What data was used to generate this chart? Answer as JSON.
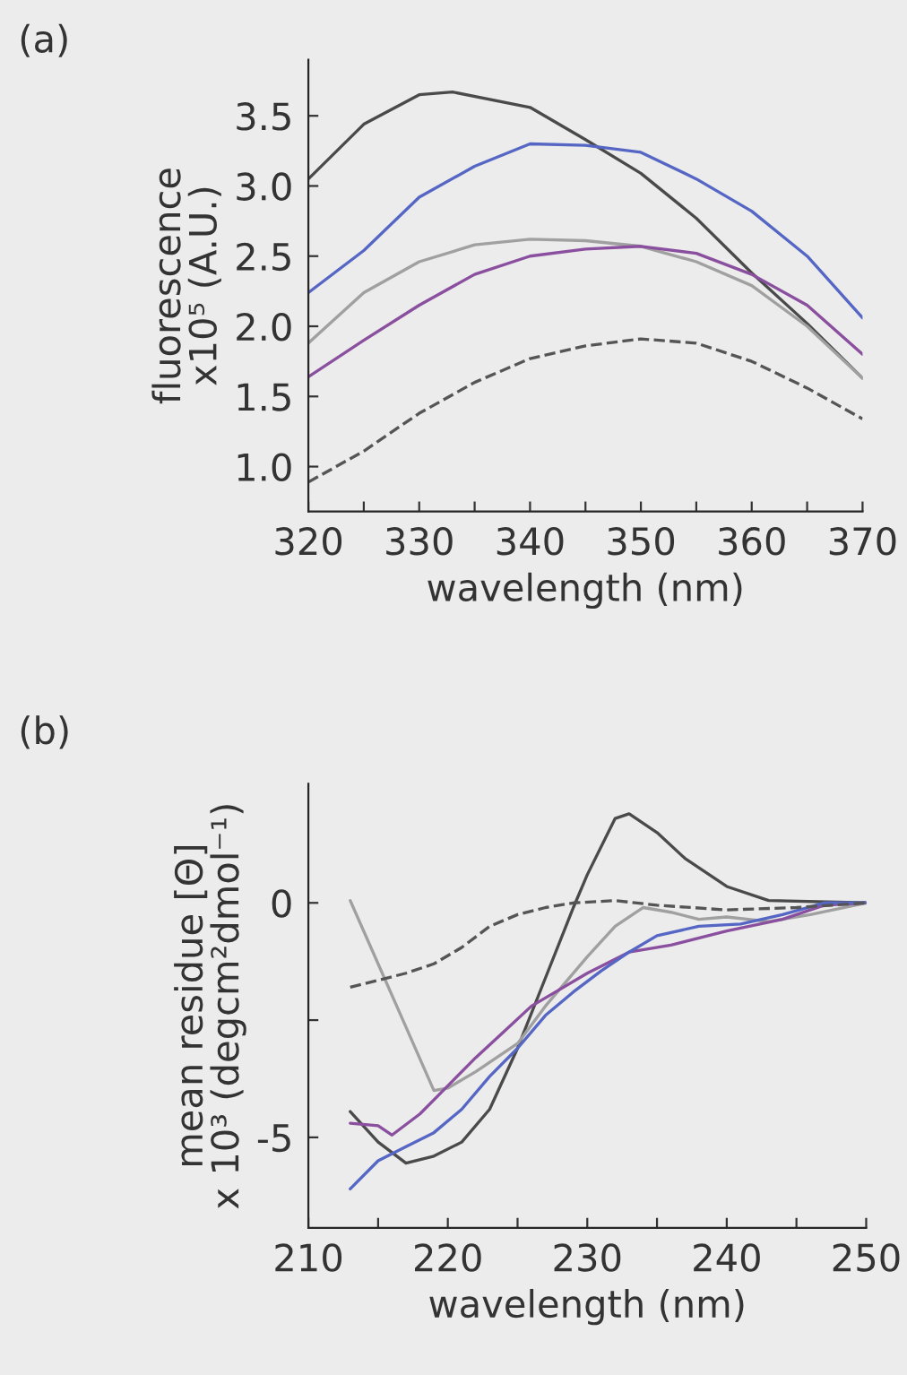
{
  "chart_data": [
    {
      "type": "line",
      "xlabel": "wavelength (nm)",
      "ylabel": "fluorescence\nx10⁵ (A.U.)",
      "annotations": [
        "(a)"
      ],
      "xlim": [
        320,
        370
      ],
      "ylim": [
        0.68,
        3.9
      ],
      "xticks": [
        320,
        {
          "value": 325,
          "label": null
        },
        330,
        {
          "value": 335,
          "label": null
        },
        340,
        {
          "value": 345,
          "label": null
        },
        350,
        {
          "value": 355,
          "label": null
        },
        360,
        {
          "value": 365,
          "label": null
        },
        370
      ],
      "yticks": [
        {
          "value": 1,
          "label": "1.0"
        },
        1.5,
        {
          "value": 2,
          "label": "2.0"
        },
        2.5,
        {
          "value": 3,
          "label": "3.0"
        },
        3.5
      ],
      "series": [
        {
          "color": "#4a4a4a",
          "x": [
            320,
            325,
            330,
            333,
            340,
            345,
            350,
            355,
            360,
            365,
            370
          ],
          "values": [
            3.05,
            3.44,
            3.65,
            3.67,
            3.56,
            3.33,
            3.09,
            2.77,
            2.38,
            2.02,
            1.63
          ]
        },
        {
          "color": "#5566c4",
          "x": [
            320,
            325,
            330,
            335,
            340,
            345,
            350,
            355,
            360,
            365,
            370
          ],
          "values": [
            2.24,
            2.54,
            2.92,
            3.14,
            3.3,
            3.29,
            3.24,
            3.05,
            2.82,
            2.5,
            2.06
          ]
        },
        {
          "color": "#a0a0a0",
          "x": [
            320,
            325,
            330,
            335,
            340,
            345,
            350,
            355,
            360,
            365,
            370
          ],
          "values": [
            1.88,
            2.24,
            2.46,
            2.58,
            2.62,
            2.61,
            2.57,
            2.46,
            2.29,
            2.0,
            1.63
          ]
        },
        {
          "color": "#8a4f9e",
          "x": [
            320,
            325,
            330,
            335,
            340,
            345,
            350,
            355,
            360,
            365,
            370
          ],
          "values": [
            1.64,
            1.9,
            2.15,
            2.37,
            2.5,
            2.55,
            2.57,
            2.52,
            2.37,
            2.15,
            1.8
          ]
        },
        {
          "color": "#555555",
          "line_style": "dashed",
          "x": [
            320,
            325,
            330,
            335,
            340,
            345,
            350,
            355,
            360,
            365,
            370
          ],
          "values": [
            0.89,
            1.11,
            1.38,
            1.6,
            1.77,
            1.86,
            1.91,
            1.88,
            1.75,
            1.56,
            1.34
          ]
        }
      ]
    },
    {
      "type": "line",
      "xlabel": "wavelength (nm)",
      "ylabel": "mean residue [Θ]\nx 10³ (degcm²dmol⁻¹)",
      "annotations": [
        "(b)"
      ],
      "xlim": [
        210,
        250
      ],
      "ylim": [
        -6.93,
        2.54
      ],
      "xticks": [
        210,
        {
          "value": 215,
          "label": null
        },
        220,
        {
          "value": 225,
          "label": null
        },
        230,
        {
          "value": 235,
          "label": null
        },
        240,
        {
          "value": 245,
          "label": null
        },
        250
      ],
      "yticks": [
        -5,
        {
          "value": -2.5,
          "label": null
        },
        0
      ],
      "series": [
        {
          "color": "#4a4a4a",
          "x": [
            213,
            215,
            217,
            219,
            221,
            223,
            225,
            227,
            229,
            230,
            232,
            233,
            235,
            237,
            240,
            243,
            250
          ],
          "values": [
            -4.45,
            -5.1,
            -5.55,
            -5.4,
            -5.1,
            -4.4,
            -3.1,
            -1.6,
            -0.1,
            0.6,
            1.8,
            1.9,
            1.5,
            0.95,
            0.35,
            0.05,
            0
          ]
        },
        {
          "color": "#a0a0a0",
          "x": [
            213,
            215,
            217,
            219,
            220,
            222,
            225,
            227,
            230,
            232,
            234,
            236,
            238,
            240,
            243,
            246,
            250
          ],
          "values": [
            0.05,
            -1.3,
            -2.65,
            -4.0,
            -3.95,
            -3.6,
            -3.0,
            -2.2,
            -1.15,
            -0.5,
            -0.1,
            -0.2,
            -0.35,
            -0.3,
            -0.4,
            -0.25,
            0
          ]
        },
        {
          "color": "#8a4f9e",
          "x": [
            213,
            215,
            216,
            218,
            220,
            222,
            224,
            226,
            228,
            230,
            233,
            236,
            240,
            244,
            247,
            250
          ],
          "values": [
            -4.7,
            -4.75,
            -4.95,
            -4.5,
            -3.9,
            -3.3,
            -2.75,
            -2.2,
            -1.85,
            -1.5,
            -1.05,
            -0.9,
            -0.6,
            -0.35,
            -0.05,
            0
          ]
        },
        {
          "color": "#5566c4",
          "x": [
            213,
            215,
            217,
            219,
            221,
            223,
            225,
            227,
            229,
            231,
            233,
            235,
            238,
            241,
            244,
            247,
            250
          ],
          "values": [
            -6.1,
            -5.5,
            -5.2,
            -4.9,
            -4.4,
            -3.7,
            -3.1,
            -2.4,
            -1.9,
            -1.45,
            -1.05,
            -0.7,
            -0.5,
            -0.45,
            -0.25,
            0,
            0
          ]
        },
        {
          "color": "#555555",
          "line_style": "dashed",
          "x": [
            213,
            215,
            217,
            219,
            221,
            223,
            225,
            227,
            229,
            232,
            235,
            240,
            245,
            250
          ],
          "values": [
            -1.8,
            -1.65,
            -1.5,
            -1.3,
            -0.95,
            -0.5,
            -0.25,
            -0.1,
            0,
            0.05,
            -0.05,
            -0.15,
            -0.1,
            0
          ]
        }
      ]
    }
  ]
}
